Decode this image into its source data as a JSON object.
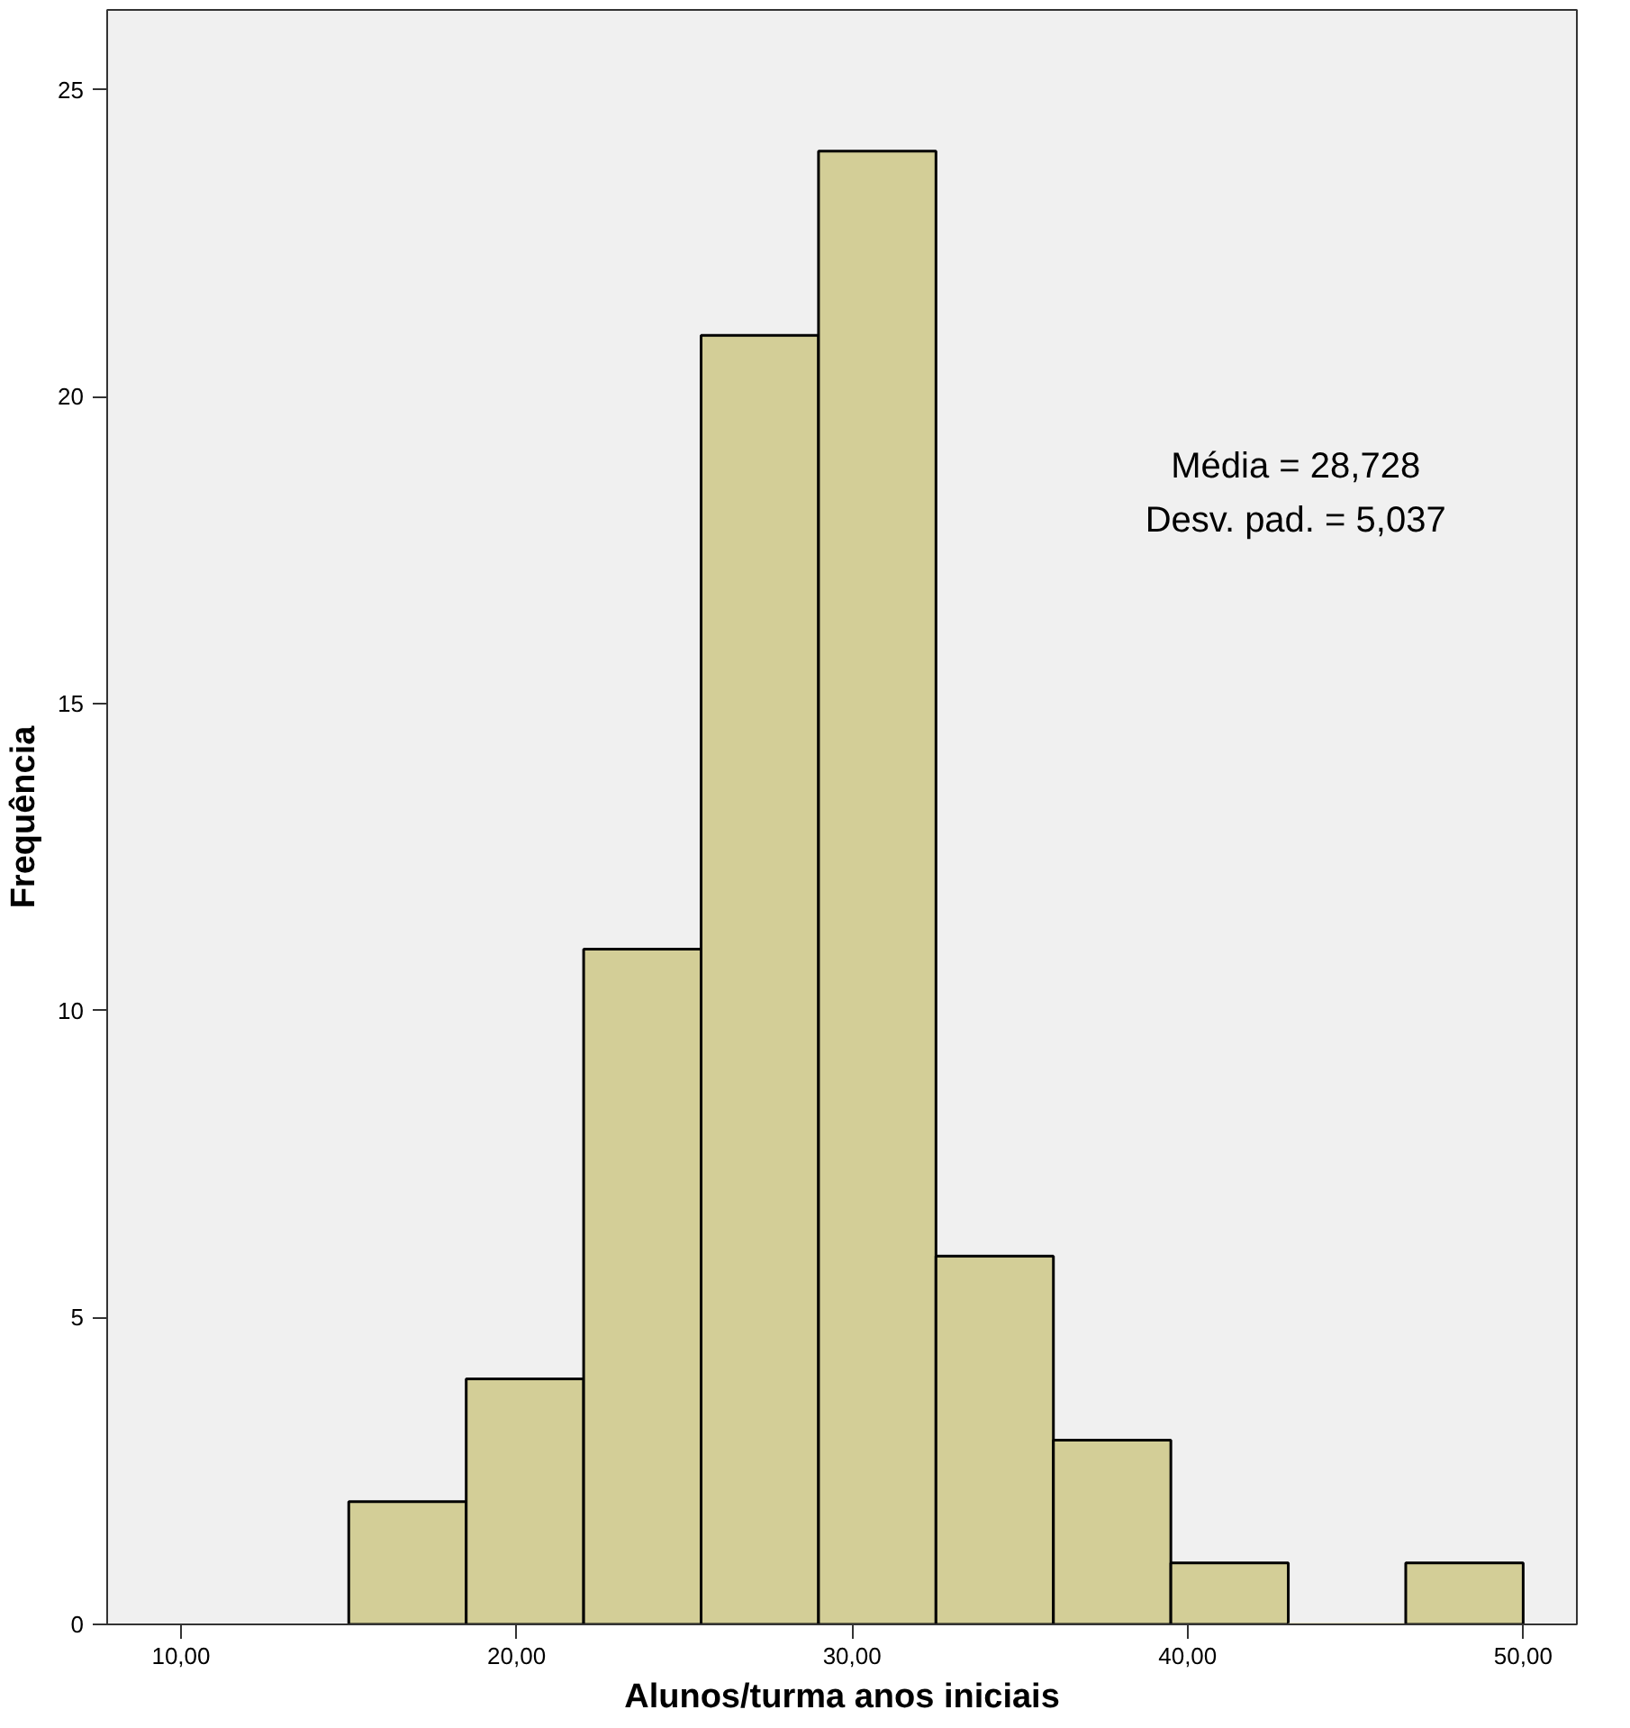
{
  "chart_data": {
    "type": "histogram",
    "xlabel": "Alunos/turma anos iniciais",
    "ylabel": "Frequência",
    "bins": [
      15,
      18.5,
      22,
      25.5,
      29,
      32.5,
      36,
      39.5,
      43,
      46.5,
      50
    ],
    "values": [
      2,
      4,
      11,
      21,
      24,
      6,
      3,
      1,
      0,
      1
    ],
    "color": "#d3ce97",
    "xlim": [
      7.8,
      51.6
    ],
    "xticks": [
      {
        "value": 10,
        "label": "10,00"
      },
      {
        "value": 20,
        "label": "20,00"
      },
      {
        "value": 30,
        "label": "30,00"
      },
      {
        "value": 40,
        "label": "40,00"
      },
      {
        "value": 50,
        "label": "50,00"
      }
    ],
    "ylim": [
      0,
      26.3
    ],
    "yticks": [
      0,
      5,
      10,
      15,
      20,
      25
    ],
    "grid": false,
    "annotations": [
      "Média = 28,728",
      "Desv. pad. = 5,037"
    ]
  }
}
